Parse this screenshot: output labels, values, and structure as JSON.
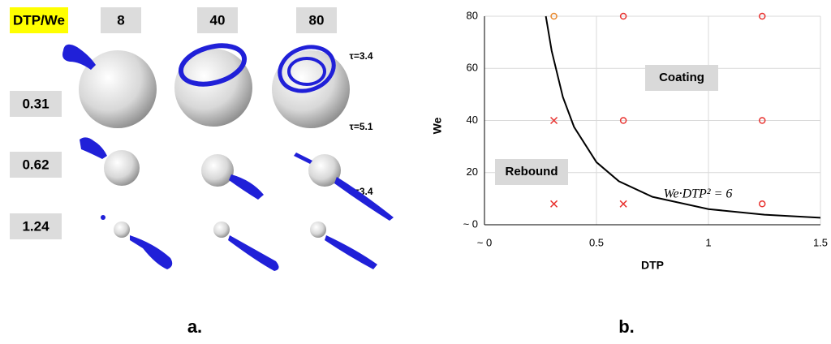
{
  "panel_a": {
    "corner": "DTP/We",
    "columns": [
      "8",
      "40",
      "80"
    ],
    "rows": [
      "0.31",
      "0.62",
      "1.24"
    ],
    "tau_labels": [
      "τ=3.4",
      "τ=5.1",
      "τ=3.4"
    ]
  },
  "chart_data": {
    "type": "scatter",
    "x_label": "DTP",
    "y_label": "We",
    "xlim": [
      0,
      1.5
    ],
    "xticks": [
      {
        "value": 0,
        "label": "~ 0"
      },
      0.5,
      1,
      1.5
    ],
    "ylim": [
      0,
      80
    ],
    "yticks": [
      {
        "value": 0,
        "label": "~ 0"
      },
      20,
      40,
      60,
      80
    ],
    "grid": true,
    "series": [
      {
        "marker": "circle",
        "color": "#e8322f",
        "x": [
          0.62,
          1.24,
          0.62,
          1.24,
          1.24
        ],
        "values": [
          80,
          80,
          40,
          40,
          8
        ]
      },
      {
        "marker": "circle",
        "color": "#e8892f",
        "x": [
          0.31
        ],
        "values": [
          80
        ]
      },
      {
        "marker": "cross",
        "color": "#e8322f",
        "x": [
          0.31,
          0.31,
          0.62
        ],
        "values": [
          40,
          8,
          8
        ]
      },
      {
        "marker": "line",
        "color": "#000000",
        "x": [
          0.274,
          0.3,
          0.35,
          0.4,
          0.5,
          0.6,
          0.75,
          1,
          1.25,
          1.5
        ],
        "values": [
          80,
          66.7,
          49,
          37.5,
          24,
          16.7,
          10.7,
          6,
          3.84,
          2.67
        ]
      }
    ],
    "annotations": [
      "Coating",
      "Rebound",
      "We·DTP² = 6"
    ]
  },
  "captions": [
    "a.",
    "b."
  ]
}
